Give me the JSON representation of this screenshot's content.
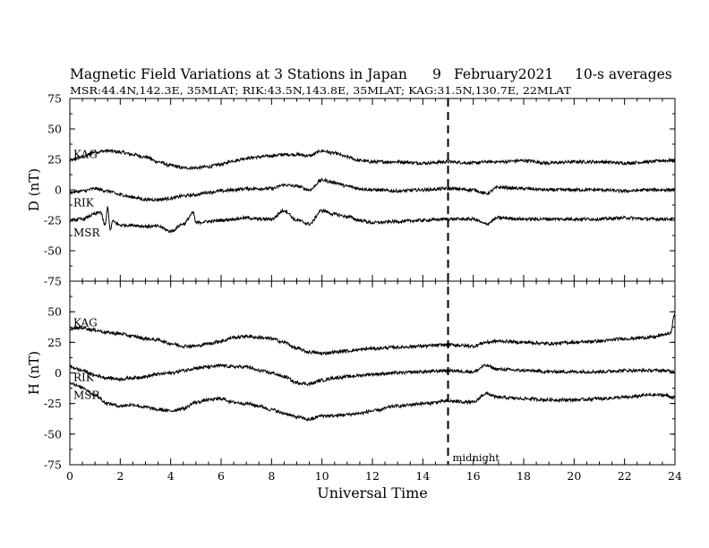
{
  "header": {
    "title": "Magnetic Field Variations at 3 Stations in Japan",
    "day": "9",
    "month_year": "February2021",
    "averaging": "10-s averages",
    "stations_line": "MSR:44.4N,142.3E, 35MLAT;  RIK:43.5N,143.8E, 35MLAT;  KAG:31.5N,130.7E, 22MLAT"
  },
  "chart_data": [
    {
      "type": "line",
      "ylabel": "D (nT)",
      "ylim": [
        -75,
        75
      ],
      "yticks": [
        "75",
        "50",
        "25",
        "0",
        "-25",
        "-50",
        "-75"
      ],
      "xlim": [
        0,
        24
      ],
      "grid": false,
      "series": [
        {
          "name": "KAG",
          "x": [
            0,
            0.5,
            1,
            1.5,
            2,
            2.5,
            3,
            3.5,
            4,
            4.5,
            5,
            5.5,
            6,
            6.5,
            7,
            7.5,
            8,
            8.5,
            9,
            9.5,
            10,
            10.5,
            11,
            11.5,
            12,
            13,
            14,
            15,
            16,
            16.5,
            17,
            18,
            19,
            20,
            21,
            22,
            23,
            23.5,
            24
          ],
          "y": [
            24,
            27,
            31,
            32,
            31,
            29,
            27,
            23,
            20,
            18,
            18,
            19,
            21,
            24,
            26,
            27,
            28,
            29,
            29,
            28,
            32,
            30,
            27,
            24,
            23,
            23,
            22,
            23,
            22,
            23,
            23,
            24,
            22,
            23,
            23,
            22,
            23,
            24,
            24
          ]
        },
        {
          "name": "RIK",
          "x": [
            0,
            0.5,
            1,
            1.5,
            2,
            2.5,
            3,
            3.5,
            4,
            4.5,
            5,
            5.5,
            6,
            6.5,
            7,
            7.5,
            8,
            8.5,
            9,
            9.5,
            10,
            10.5,
            11,
            11.5,
            12,
            13,
            14,
            15,
            16,
            16.5,
            17,
            18,
            19,
            20,
            21,
            22,
            23,
            23.5,
            24
          ],
          "y": [
            -2,
            -1,
            1,
            -1,
            -4,
            -6,
            -8,
            -8,
            -7,
            -5,
            -4,
            -2,
            -1,
            0,
            1,
            1,
            1,
            4,
            3,
            0,
            8,
            6,
            3,
            1,
            0,
            -1,
            0,
            1,
            0,
            -3,
            2,
            1,
            0,
            0,
            0,
            -1,
            0,
            0,
            0
          ]
        },
        {
          "name": "MSR",
          "x": [
            0,
            0.5,
            1,
            1.2,
            1.4,
            1.5,
            1.6,
            1.7,
            2,
            2.5,
            3,
            3.5,
            4,
            4.5,
            4.9,
            5,
            5.5,
            6,
            6.5,
            7,
            7.5,
            8,
            8.5,
            9,
            9.5,
            10,
            10.5,
            11,
            11.5,
            12,
            13,
            14,
            15,
            16,
            16.5,
            17,
            18,
            19,
            20,
            21,
            22,
            23,
            23.5,
            24
          ],
          "y": [
            -25,
            -24,
            -20,
            -18,
            -29,
            -14,
            -33,
            -26,
            -29,
            -29,
            -30,
            -30,
            -34,
            -28,
            -19,
            -27,
            -26,
            -25,
            -24,
            -23,
            -24,
            -24,
            -17,
            -25,
            -28,
            -17,
            -20,
            -22,
            -25,
            -27,
            -26,
            -25,
            -24,
            -24,
            -28,
            -23,
            -24,
            -24,
            -24,
            -24,
            -23,
            -24,
            -24,
            -24
          ]
        }
      ]
    },
    {
      "type": "line",
      "ylabel": "H (nT)",
      "ylim": [
        -75,
        75
      ],
      "yticks": [
        "",
        "50",
        "25",
        "0",
        "-25",
        "-50",
        "-75"
      ],
      "xlabel": "Universal Time",
      "xlim": [
        0,
        24
      ],
      "xticks": [
        "0",
        "2",
        "4",
        "6",
        "8",
        "10",
        "12",
        "14",
        "16",
        "18",
        "20",
        "22",
        "24"
      ],
      "grid": false,
      "annotation": {
        "x": 15,
        "label": "midnight",
        "style": "dashed"
      },
      "series": [
        {
          "name": "KAG",
          "x": [
            0,
            0.5,
            1,
            1.5,
            2,
            2.5,
            3,
            3.5,
            4,
            4.5,
            5,
            5.5,
            6,
            6.5,
            7,
            7.5,
            8,
            8.5,
            9,
            9.5,
            10,
            10.5,
            11,
            11.5,
            12,
            13,
            14,
            15,
            16,
            16.5,
            17,
            18,
            19,
            20,
            21,
            22,
            23,
            23.8,
            24
          ],
          "y": [
            36,
            37,
            35,
            33,
            32,
            30,
            28,
            27,
            24,
            22,
            22,
            24,
            26,
            29,
            30,
            29,
            28,
            25,
            20,
            17,
            16,
            17,
            18,
            19,
            20,
            21,
            22,
            23,
            22,
            25,
            26,
            25,
            24,
            25,
            26,
            28,
            29,
            32,
            48
          ]
        },
        {
          "name": "RIK",
          "x": [
            0,
            0.5,
            1,
            1.5,
            2,
            2.5,
            3,
            3.5,
            4,
            4.5,
            5,
            5.5,
            6,
            6.5,
            7,
            7.5,
            8,
            8.5,
            9,
            9.5,
            10,
            10.5,
            11,
            11.5,
            12,
            13,
            14,
            15,
            16,
            16.5,
            17,
            18,
            19,
            20,
            21,
            22,
            23,
            23.5,
            24
          ],
          "y": [
            5,
            2,
            -2,
            -4,
            -5,
            -4,
            -3,
            -1,
            0,
            2,
            4,
            5,
            6,
            5,
            5,
            2,
            0,
            -3,
            -8,
            -9,
            -6,
            -4,
            -3,
            -2,
            -1,
            0,
            1,
            2,
            1,
            6,
            3,
            2,
            1,
            1,
            1,
            2,
            2,
            2,
            1
          ]
        },
        {
          "name": "MSR",
          "x": [
            0,
            0.5,
            1,
            1.5,
            2,
            2.5,
            3,
            3.5,
            4,
            4.5,
            5,
            5.5,
            6,
            6.5,
            7,
            7.5,
            8,
            8.5,
            9,
            9.5,
            10,
            10.5,
            11,
            11.5,
            12,
            13,
            14,
            15,
            16,
            16.5,
            17,
            18,
            19,
            20,
            21,
            22,
            23,
            23.5,
            24
          ],
          "y": [
            -8,
            -12,
            -18,
            -25,
            -27,
            -26,
            -28,
            -30,
            -31,
            -29,
            -24,
            -22,
            -21,
            -24,
            -25,
            -27,
            -30,
            -33,
            -36,
            -38,
            -35,
            -35,
            -34,
            -33,
            -31,
            -27,
            -25,
            -23,
            -24,
            -17,
            -20,
            -21,
            -22,
            -22,
            -21,
            -20,
            -18,
            -18,
            -20
          ]
        }
      ]
    }
  ]
}
